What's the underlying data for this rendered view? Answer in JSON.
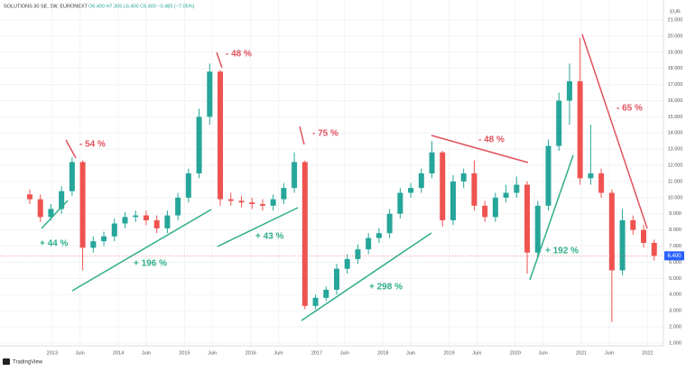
{
  "chart_data": {
    "type": "candlestick",
    "title": "SOLUTIONS 30 SE, 1W, EURONEXT",
    "subtitle": "O6.400 H7.305 L6.400 C6.400 −0.485 (−7.05%)",
    "currency": "EUR",
    "brand": "TradingView",
    "last_price_label": "6.400",
    "up_color": "#26a69a",
    "down_color": "#ef5350",
    "x": [
      2012.66,
      2012.82,
      2012.98,
      2013.14,
      2013.3,
      2013.46,
      2013.62,
      2013.78,
      2013.94,
      2014.1,
      2014.26,
      2014.42,
      2014.58,
      2014.74,
      2014.9,
      2015.06,
      2015.22,
      2015.38,
      2015.54,
      2015.7,
      2015.86,
      2016.02,
      2016.18,
      2016.34,
      2016.5,
      2016.66,
      2016.82,
      2016.98,
      2017.14,
      2017.3,
      2017.46,
      2017.62,
      2017.78,
      2017.94,
      2018.1,
      2018.26,
      2018.42,
      2018.58,
      2018.74,
      2018.9,
      2019.06,
      2019.22,
      2019.38,
      2019.54,
      2019.7,
      2019.86,
      2020.02,
      2020.18,
      2020.34,
      2020.5,
      2020.66,
      2020.82,
      2020.98,
      2021.14,
      2021.3,
      2021.46,
      2021.62,
      2021.78,
      2021.94,
      2022.1
    ],
    "open": [
      10.2,
      9.9,
      8.8,
      9.3,
      10.4,
      12.2,
      6.9,
      7.3,
      7.6,
      8.4,
      8.8,
      8.9,
      8.6,
      8.1,
      8.9,
      10.0,
      11.5,
      15.0,
      17.8,
      9.9,
      9.8,
      9.7,
      9.6,
      9.5,
      9.9,
      10.6,
      12.2,
      3.3,
      3.8,
      4.3,
      5.6,
      6.2,
      6.8,
      7.5,
      7.8,
      9.0,
      10.3,
      10.6,
      11.5,
      12.8,
      8.6,
      11.0,
      11.5,
      9.5,
      8.8,
      10.0,
      10.3,
      10.8,
      6.6,
      9.5,
      13.2,
      16.0,
      17.2,
      11.2,
      11.5,
      10.3,
      5.5,
      8.6,
      8.0,
      7.2
    ],
    "high": [
      10.5,
      10.2,
      9.6,
      10.7,
      12.5,
      12.3,
      7.6,
      7.9,
      8.7,
      9.1,
      9.2,
      9.2,
      8.9,
      9.2,
      10.3,
      11.8,
      15.5,
      18.3,
      17.9,
      10.3,
      10.1,
      10.0,
      9.9,
      10.2,
      10.9,
      12.8,
      12.3,
      4.0,
      4.5,
      5.9,
      6.5,
      7.1,
      7.8,
      8.1,
      9.3,
      10.6,
      10.9,
      11.8,
      13.5,
      12.9,
      11.4,
      11.8,
      12.3,
      9.8,
      10.3,
      10.8,
      11.3,
      11.0,
      9.8,
      13.6,
      16.5,
      18.3,
      19.9,
      14.5,
      11.8,
      10.5,
      9.3,
      8.9,
      8.3,
      7.4
    ],
    "low": [
      9.6,
      8.5,
      8.6,
      9.0,
      10.1,
      5.5,
      6.6,
      7.0,
      7.3,
      8.1,
      8.5,
      8.3,
      7.8,
      7.8,
      8.6,
      9.7,
      11.2,
      14.5,
      9.5,
      9.5,
      9.4,
      9.3,
      9.2,
      9.2,
      9.6,
      10.3,
      3.1,
      3.1,
      3.6,
      4.0,
      5.3,
      5.9,
      6.5,
      7.2,
      7.5,
      8.7,
      10.0,
      10.3,
      11.2,
      8.2,
      8.3,
      10.6,
      9.2,
      8.5,
      8.5,
      9.7,
      10.0,
      5.3,
      6.3,
      9.2,
      12.9,
      14.5,
      10.8,
      10.8,
      10.0,
      2.3,
      5.2,
      7.7,
      6.9,
      6.1
    ],
    "close": [
      9.9,
      8.8,
      9.3,
      10.4,
      12.2,
      6.9,
      7.3,
      7.6,
      8.4,
      8.8,
      8.9,
      8.6,
      8.1,
      8.9,
      10.0,
      11.5,
      15.0,
      17.8,
      9.9,
      9.8,
      9.7,
      9.6,
      9.5,
      9.9,
      10.6,
      12.2,
      3.3,
      3.8,
      4.3,
      5.6,
      6.2,
      6.8,
      7.5,
      7.8,
      9.0,
      10.3,
      10.6,
      11.5,
      12.8,
      8.6,
      11.0,
      11.5,
      9.5,
      8.8,
      10.0,
      10.3,
      10.8,
      6.6,
      9.5,
      13.2,
      16.0,
      17.2,
      11.2,
      11.5,
      10.3,
      5.5,
      8.6,
      8.0,
      7.2,
      6.4
    ],
    "xlim": [
      2012.21,
      2022.24
    ],
    "xticks": [
      {
        "value": 2013,
        "label": "2013"
      },
      {
        "value": 2013.42,
        "label": "Juin"
      },
      {
        "value": 2014,
        "label": "2014"
      },
      {
        "value": 2014.42,
        "label": "Juin"
      },
      {
        "value": 2015,
        "label": "2015"
      },
      {
        "value": 2015.42,
        "label": "Juin"
      },
      {
        "value": 2016,
        "label": "2016"
      },
      {
        "value": 2016.42,
        "label": "Juin"
      },
      {
        "value": 2017,
        "label": "2017"
      },
      {
        "value": 2017.42,
        "label": "Juin"
      },
      {
        "value": 2018,
        "label": "2018"
      },
      {
        "value": 2018.42,
        "label": "Juin"
      },
      {
        "value": 2019,
        "label": "2019"
      },
      {
        "value": 2019.42,
        "label": "Juin"
      },
      {
        "value": 2020,
        "label": "2020"
      },
      {
        "value": 2020.42,
        "label": "Juin"
      },
      {
        "value": 2021,
        "label": "2021"
      },
      {
        "value": 2021.42,
        "label": "Juin"
      },
      {
        "value": 2022,
        "label": "2022"
      }
    ],
    "ylim": [
      0.83,
      22.23
    ],
    "yticks": [
      {
        "value": 1,
        "label": "1.000"
      },
      {
        "value": 2,
        "label": "2.000"
      },
      {
        "value": 3,
        "label": "3.000"
      },
      {
        "value": 4,
        "label": "4.000"
      },
      {
        "value": 5,
        "label": "5.000"
      },
      {
        "value": 6,
        "label": "6.000"
      },
      {
        "value": 7,
        "label": "7.000"
      },
      {
        "value": 8,
        "label": "8.000"
      },
      {
        "value": 9,
        "label": "9.000"
      },
      {
        "value": 10,
        "label": "10.000"
      },
      {
        "value": 11,
        "label": "11.000"
      },
      {
        "value": 12,
        "label": "12.000"
      },
      {
        "value": 13,
        "label": "13.000"
      },
      {
        "value": 14,
        "label": "14.000"
      },
      {
        "value": 15,
        "label": "15.000"
      },
      {
        "value": 16,
        "label": "16.000"
      },
      {
        "value": 17,
        "label": "17.000"
      },
      {
        "value": 18,
        "label": "18.000"
      },
      {
        "value": 19,
        "label": "19.000"
      },
      {
        "value": 20,
        "label": "20.000"
      },
      {
        "value": 21,
        "label": "21.000"
      }
    ],
    "grid": true,
    "annotations": [
      "- 54 %",
      "+ 44 %",
      "- 48 %",
      "+ 196 %",
      "+ 43 %",
      "- 75 %",
      "+ 298 %",
      "- 48 %",
      "+ 192 %",
      "- 65 %"
    ]
  }
}
